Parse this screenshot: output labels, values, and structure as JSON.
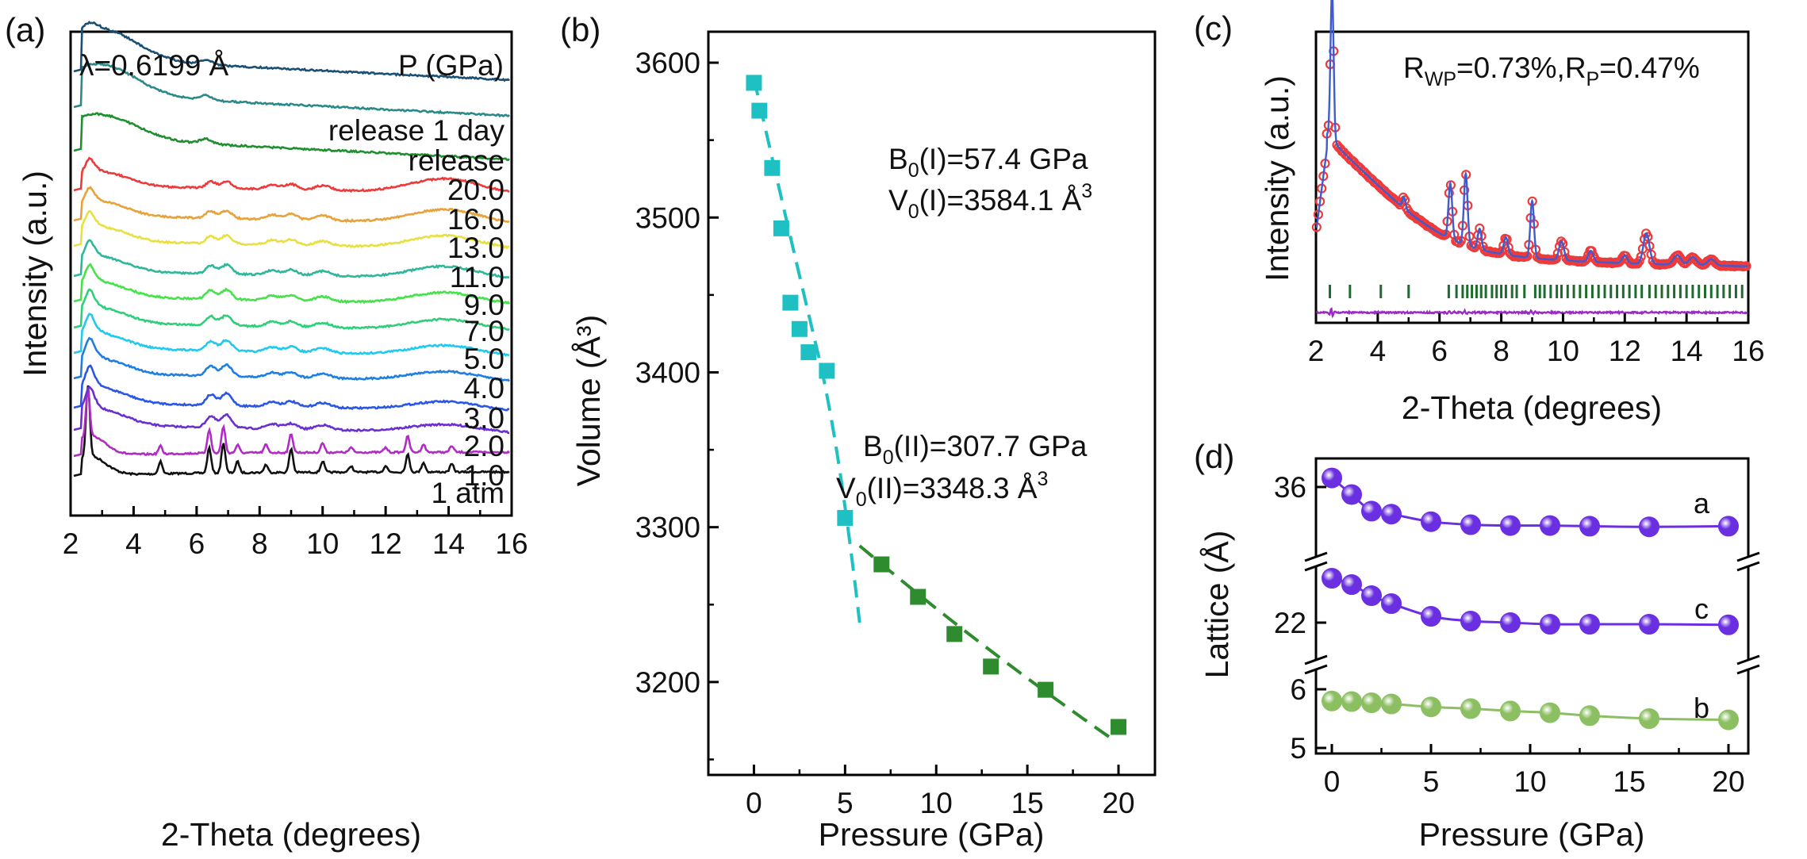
{
  "colors": {
    "axis": "#000000",
    "cyan": "#1fc0c4",
    "green": "#2e8b2e",
    "fit_blue": "#3f5bd0",
    "obs_red": "#ee3a3a",
    "tick_green": "#1e6b2e",
    "diff_purple": "#9a2cc4",
    "lattice_purple": "#6a2fe0",
    "lattice_green": "#8cbf62"
  },
  "chart_data": [
    {
      "panel": "(a)",
      "type": "line",
      "xlabel": "2-Theta (degrees)",
      "ylabel": "Intensity (a.u.)",
      "xlim": [
        2,
        16
      ],
      "xticks": [
        "2",
        "4",
        "6",
        "8",
        "10",
        "12",
        "14",
        "16"
      ],
      "annotations": [
        "λ=0.6199 Å",
        "P (GPa)"
      ],
      "peaks_2theta": [
        2.55,
        4.85,
        6.4,
        6.85,
        7.3,
        8.2,
        9.0,
        10.0,
        10.9,
        12.0,
        12.7,
        13.2,
        14.1
      ],
      "series": [
        {
          "name": "1 atm",
          "color": "#111111",
          "pressure_label": "1 atm"
        },
        {
          "name": "1.0",
          "color": "#b12cc4",
          "pressure_label": "1.0"
        },
        {
          "name": "2.0",
          "color": "#6a2fd1",
          "pressure_label": "2.0"
        },
        {
          "name": "3.0",
          "color": "#2a56e6",
          "pressure_label": "3.0"
        },
        {
          "name": "4.0",
          "color": "#1e7fe0",
          "pressure_label": "4.0"
        },
        {
          "name": "5.0",
          "color": "#22c9ee",
          "pressure_label": "5.0"
        },
        {
          "name": "7.0",
          "color": "#2fcf7a",
          "pressure_label": "7.0"
        },
        {
          "name": "9.0",
          "color": "#47e24b",
          "pressure_label": "9.0"
        },
        {
          "name": "11.0",
          "color": "#2db89a",
          "pressure_label": "11.0"
        },
        {
          "name": "13.0",
          "color": "#e8e040",
          "pressure_label": "13.0"
        },
        {
          "name": "16.0",
          "color": "#e8a23a",
          "pressure_label": "16.0"
        },
        {
          "name": "20.0",
          "color": "#ee3a3a",
          "pressure_label": "20.0"
        },
        {
          "name": "release",
          "color": "#1f8f2f",
          "pressure_label": "release"
        },
        {
          "name": "release 1 day",
          "color": "#2a8a8a",
          "pressure_label": "release 1 day"
        },
        {
          "name": "top",
          "color": "#1b4f74",
          "pressure_label": ""
        }
      ]
    },
    {
      "panel": "(b)",
      "type": "scatter",
      "xlabel": "Pressure (GPa)",
      "ylabel": "Volume (Å³)",
      "xlim": [
        -2.5,
        22
      ],
      "ylim": [
        3140,
        3620
      ],
      "xticks": [
        "0",
        "5",
        "10",
        "15",
        "20"
      ],
      "yticks": [
        "3200",
        "3300",
        "3400",
        "3500",
        "3600"
      ],
      "series": [
        {
          "name": "I",
          "color": "#1fc0c4",
          "x": [
            0,
            0.3,
            1,
            1.5,
            2,
            2.5,
            3,
            4,
            5
          ],
          "y": [
            3587,
            3569,
            3532,
            3493,
            3445,
            3428,
            3413,
            3401,
            3306
          ]
        },
        {
          "name": "II",
          "color": "#2e8b2e",
          "x": [
            7,
            9,
            11,
            13,
            16,
            20
          ],
          "y": [
            3276,
            3255,
            3231,
            3210,
            3195,
            3171
          ]
        }
      ],
      "annotations": {
        "b1": {
          "pre": "B",
          "sub": "0",
          "post": "(I)=57.4 GPa"
        },
        "v1": {
          "pre": "V",
          "sub": "0",
          "post": "(I)=3584.1 Å",
          "sup": "3"
        },
        "b2": {
          "pre": "B",
          "sub": "0",
          "post": "(II)=307.7 GPa"
        },
        "v2": {
          "pre": "V",
          "sub": "0",
          "post": "(II)=3348.3 Å",
          "sup": "3"
        }
      }
    },
    {
      "panel": "(c)",
      "type": "line",
      "xlabel": "2-Theta (degrees)",
      "ylabel": "Intensity (a.u.)",
      "xlim": [
        2,
        16
      ],
      "xticks": [
        "2",
        "4",
        "6",
        "8",
        "10",
        "12",
        "14",
        "16"
      ],
      "annotation": {
        "r": "R",
        "wp": "WP",
        "mid": "=0.73%,R",
        "p": "P",
        "end": "=0.47%"
      },
      "reflection_ticks_2theta": [
        2.45,
        3.1,
        4.1,
        5.0,
        6.3,
        6.55,
        6.75,
        6.9,
        7.05,
        7.2,
        7.35,
        7.5,
        7.7,
        7.85,
        8.0,
        8.15,
        8.35,
        8.5,
        8.75,
        9.1,
        9.25,
        9.4,
        9.6,
        9.8,
        9.95,
        10.15,
        10.35,
        10.55,
        10.75,
        10.95,
        11.15,
        11.35,
        11.55,
        11.75,
        11.95,
        12.15,
        12.35,
        12.55,
        12.8,
        13.0,
        13.2,
        13.4,
        13.6,
        13.8,
        14.0,
        14.2,
        14.4,
        14.6,
        14.8,
        15.0,
        15.2,
        15.4,
        15.6,
        15.8
      ]
    },
    {
      "panel": "(d)",
      "type": "scatter",
      "xlabel": "Pressure (GPa)",
      "ylabel": "Lattice (Å)",
      "xlim": [
        -0.8,
        21
      ],
      "xticks": [
        "0",
        "5",
        "10",
        "15",
        "20"
      ],
      "yticks": [
        "36",
        "22",
        "6",
        "5"
      ],
      "x": [
        0,
        1,
        2,
        3,
        5,
        7,
        9,
        11,
        13,
        16,
        20
      ],
      "series": [
        {
          "name": "a",
          "color": "#6a2fe0",
          "y": [
            36.3,
            35.75,
            35.2,
            35.1,
            34.85,
            34.75,
            34.72,
            34.72,
            34.7,
            34.68,
            34.7
          ]
        },
        {
          "name": "c",
          "color": "#6a2fe0",
          "y": [
            23.4,
            23.2,
            22.85,
            22.6,
            22.2,
            22.05,
            22.0,
            21.95,
            21.95,
            21.95,
            21.93
          ]
        },
        {
          "name": "b",
          "color": "#8cbf62",
          "y": [
            5.8,
            5.79,
            5.77,
            5.75,
            5.7,
            5.67,
            5.63,
            5.6,
            5.55,
            5.5,
            5.48
          ]
        }
      ]
    }
  ],
  "labels": {
    "a": "(a)",
    "b": "(b)",
    "c": "(c)",
    "d": "(d)"
  }
}
